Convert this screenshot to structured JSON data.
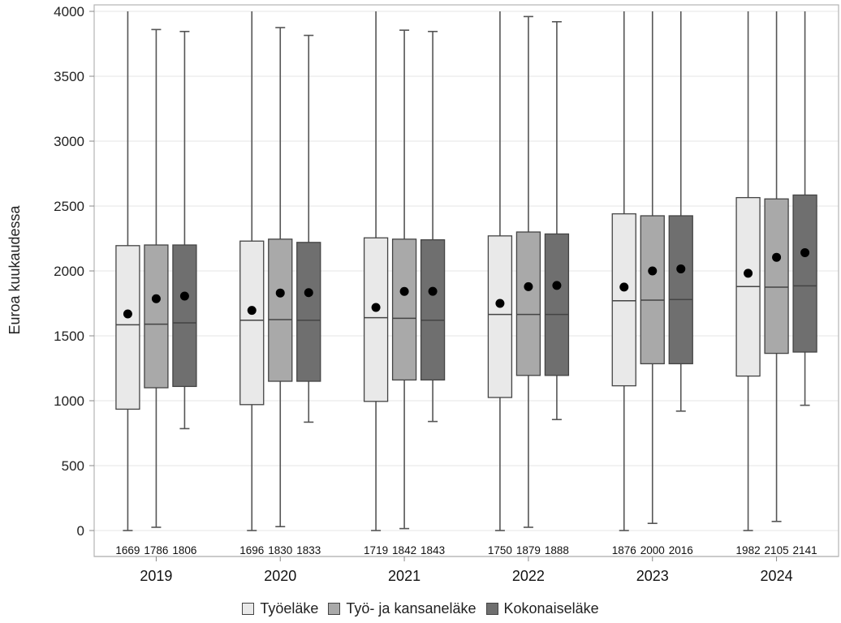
{
  "chart_data": {
    "type": "boxplot",
    "ylabel": "Euroa kuukaudessa",
    "ylim": [
      0,
      4000
    ],
    "yticks": [
      0,
      500,
      1000,
      1500,
      2000,
      2500,
      3000,
      3500,
      4000
    ],
    "grid": true,
    "legend_position": "bottom",
    "categories": [
      "2019",
      "2020",
      "2021",
      "2022",
      "2023",
      "2024"
    ],
    "series": [
      {
        "name": "Työeläke",
        "color": "#e9e9e9",
        "boxes": [
          {
            "min": 0,
            "q1": 935,
            "median": 1585,
            "q3": 2195,
            "max": 4000,
            "mean": 1669
          },
          {
            "min": 0,
            "q1": 970,
            "median": 1620,
            "q3": 2230,
            "max": 4000,
            "mean": 1696
          },
          {
            "min": 0,
            "q1": 995,
            "median": 1640,
            "q3": 2255,
            "max": 4000,
            "mean": 1719
          },
          {
            "min": 0,
            "q1": 1025,
            "median": 1665,
            "q3": 2270,
            "max": 4000,
            "mean": 1750
          },
          {
            "min": 0,
            "q1": 1115,
            "median": 1770,
            "q3": 2440,
            "max": 4000,
            "mean": 1876
          },
          {
            "min": 0,
            "q1": 1190,
            "median": 1880,
            "q3": 2565,
            "max": 4000,
            "mean": 1982
          }
        ]
      },
      {
        "name": "Työ- ja kansaneläke",
        "color": "#a9a9a9",
        "boxes": [
          {
            "min": 25,
            "q1": 1100,
            "median": 1590,
            "q3": 2200,
            "max": 3860,
            "mean": 1786
          },
          {
            "min": 30,
            "q1": 1150,
            "median": 1625,
            "q3": 2245,
            "max": 3875,
            "mean": 1830
          },
          {
            "min": 15,
            "q1": 1160,
            "median": 1635,
            "q3": 2245,
            "max": 3855,
            "mean": 1842
          },
          {
            "min": 25,
            "q1": 1195,
            "median": 1665,
            "q3": 2300,
            "max": 3960,
            "mean": 1879
          },
          {
            "min": 55,
            "q1": 1285,
            "median": 1775,
            "q3": 2425,
            "max": 4000,
            "mean": 2000
          },
          {
            "min": 70,
            "q1": 1365,
            "median": 1875,
            "q3": 2555,
            "max": 4000,
            "mean": 2105
          }
        ]
      },
      {
        "name": "Kokonaiseläke",
        "color": "#6f6f6f",
        "boxes": [
          {
            "min": 785,
            "q1": 1110,
            "median": 1600,
            "q3": 2200,
            "max": 3845,
            "mean": 1806
          },
          {
            "min": 835,
            "q1": 1150,
            "median": 1620,
            "q3": 2220,
            "max": 3815,
            "mean": 1833
          },
          {
            "min": 840,
            "q1": 1160,
            "median": 1620,
            "q3": 2240,
            "max": 3845,
            "mean": 1843
          },
          {
            "min": 855,
            "q1": 1195,
            "median": 1665,
            "q3": 2285,
            "max": 3920,
            "mean": 1888
          },
          {
            "min": 920,
            "q1": 1285,
            "median": 1780,
            "q3": 2425,
            "max": 4000,
            "mean": 2016
          },
          {
            "min": 965,
            "q1": 1375,
            "median": 1885,
            "q3": 2585,
            "max": 4000,
            "mean": 2141
          }
        ]
      }
    ]
  }
}
